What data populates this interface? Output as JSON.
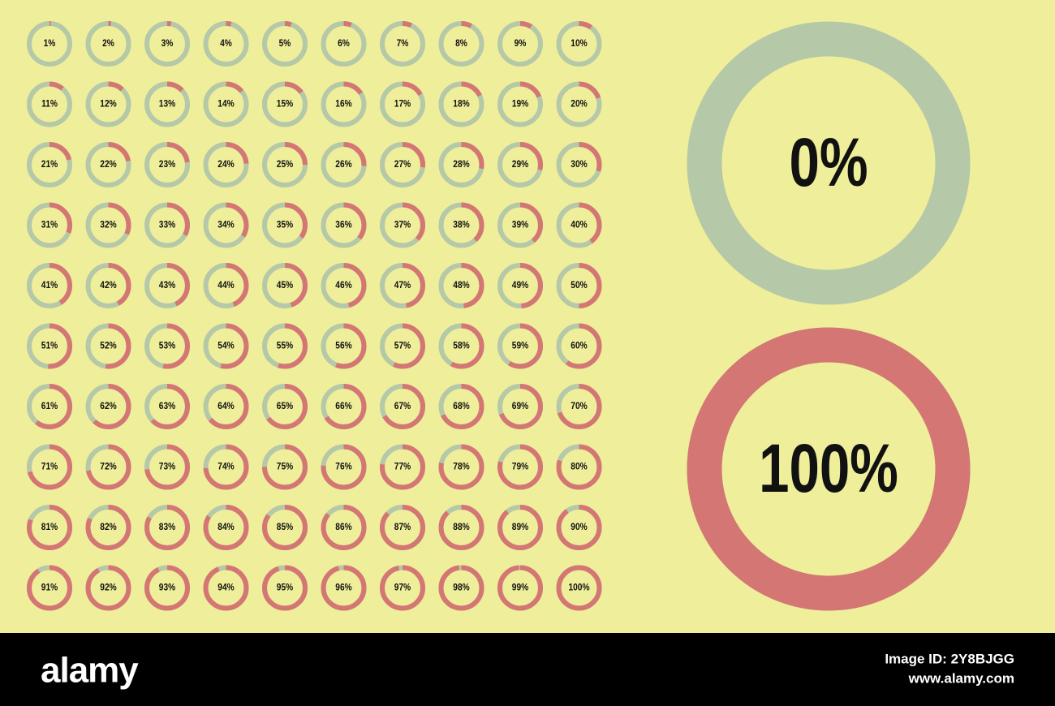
{
  "chart_data": {
    "type": "donut",
    "values": [
      1,
      2,
      3,
      4,
      5,
      6,
      7,
      8,
      9,
      10,
      11,
      12,
      13,
      14,
      15,
      16,
      17,
      18,
      19,
      20,
      21,
      22,
      23,
      24,
      25,
      26,
      27,
      28,
      29,
      30,
      31,
      32,
      33,
      34,
      35,
      36,
      37,
      38,
      39,
      40,
      41,
      42,
      43,
      44,
      45,
      46,
      47,
      48,
      49,
      50,
      51,
      52,
      53,
      54,
      55,
      56,
      57,
      58,
      59,
      60,
      61,
      62,
      63,
      64,
      65,
      66,
      67,
      68,
      69,
      70,
      71,
      72,
      73,
      74,
      75,
      76,
      77,
      78,
      79,
      80,
      81,
      82,
      83,
      84,
      85,
      86,
      87,
      88,
      89,
      90,
      91,
      92,
      93,
      94,
      95,
      96,
      97,
      98,
      99,
      100
    ],
    "value_labels": [
      "1%",
      "2%",
      "3%",
      "4%",
      "5%",
      "6%",
      "7%",
      "8%",
      "9%",
      "10%",
      "11%",
      "12%",
      "13%",
      "14%",
      "15%",
      "16%",
      "17%",
      "18%",
      "19%",
      "20%",
      "21%",
      "22%",
      "23%",
      "24%",
      "25%",
      "26%",
      "27%",
      "28%",
      "29%",
      "30%",
      "31%",
      "32%",
      "33%",
      "34%",
      "35%",
      "36%",
      "37%",
      "38%",
      "39%",
      "40%",
      "41%",
      "42%",
      "43%",
      "44%",
      "45%",
      "46%",
      "47%",
      "48%",
      "49%",
      "50%",
      "51%",
      "52%",
      "53%",
      "54%",
      "55%",
      "56%",
      "57%",
      "58%",
      "59%",
      "60%",
      "61%",
      "62%",
      "63%",
      "64%",
      "65%",
      "66%",
      "67%",
      "68%",
      "69%",
      "70%",
      "71%",
      "72%",
      "73%",
      "74%",
      "75%",
      "76%",
      "77%",
      "78%",
      "79%",
      "80%",
      "81%",
      "82%",
      "83%",
      "84%",
      "85%",
      "86%",
      "87%",
      "88%",
      "89%",
      "90%",
      "91%",
      "92%",
      "93%",
      "94%",
      "95%",
      "96%",
      "97%",
      "98%",
      "99%",
      "100%"
    ],
    "featured_values": [
      0,
      100
    ],
    "featured_labels": [
      "0%",
      "100%"
    ],
    "ylim": [
      0,
      100
    ],
    "color": "#d47674",
    "track_color": "#b5c8a8"
  },
  "footer": {
    "logo": "alamy",
    "image_id": "Image ID: 2Y8BJGG",
    "url": "www.alamy.com"
  }
}
